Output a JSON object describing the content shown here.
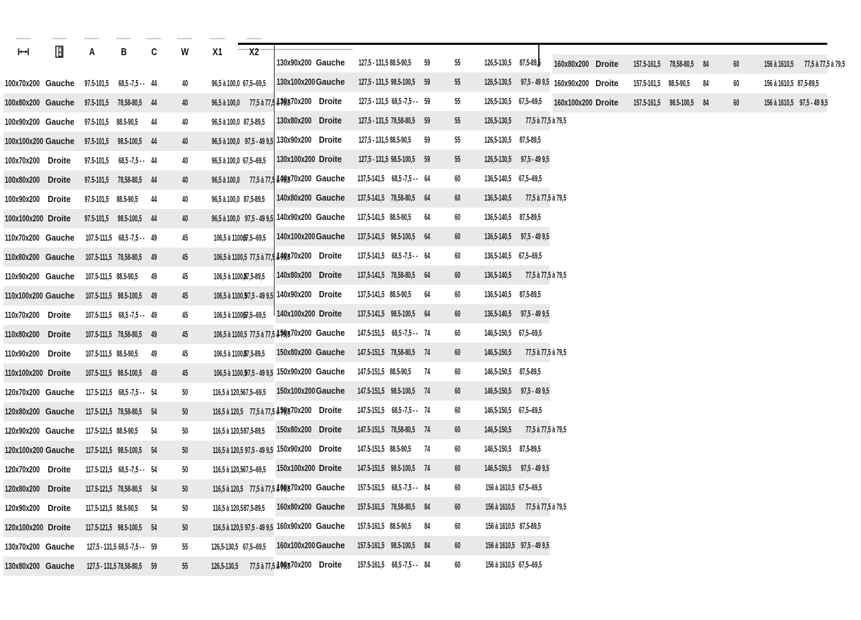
{
  "header": {
    "icon_columns": [
      "width-dimension-icon",
      "door-icon"
    ],
    "columns": [
      "A",
      "B",
      "C",
      "W",
      "X1",
      "X2"
    ]
  },
  "colors": {
    "stripe": "#e9e9e9",
    "text": "#161616",
    "rule": "#000000"
  },
  "table": {
    "field_order": [
      "size",
      "side",
      "a",
      "b",
      "c",
      "w",
      "x1",
      "x2"
    ],
    "blocks": [
      {
        "name": "left",
        "stripe_offset": 0,
        "rows": [
          [
            "100x70x200",
            "Gauche",
            "97.5-101,5",
            "68,5 -7,5 - -",
            "44",
            "40",
            "96,5 à 100,0",
            "67,5--69,5"
          ],
          [
            "100x80x200",
            "Gauche",
            "97.5-101,5",
            "78,58-80,5",
            "44",
            "40",
            "96,5 à 100,0",
            "77,5 à 77,5 à 79,5"
          ],
          [
            "100x90x200",
            "Gauche",
            "97.5-101,5",
            "88.5-90,5",
            "44",
            "40",
            "96,5 à 100,0",
            "87,5-89,5"
          ],
          [
            "100x100x200",
            "Gauche",
            "97.5-101,5",
            "98.5-100,5",
            "44",
            "40",
            "96,5 à 100,0",
            "97,5 - 49 9,5"
          ],
          [
            "100x70x200",
            "Droite",
            "97.5-101,5",
            "68,5 -7,5 - -",
            "44",
            "40",
            "96,5 à 100,0",
            "67,5--69,5"
          ],
          [
            "100x80x200",
            "Droite",
            "97.5-101,5",
            "78,58-80,5",
            "44",
            "40",
            "96,5 à 100,0",
            "77,5 à 77,5 à 79,5"
          ],
          [
            "100x90x200",
            "Droite",
            "97.5-101,5",
            "88.5-90,5",
            "44",
            "40",
            "96,5 à 100,0",
            "87,5-89,5"
          ],
          [
            "100x100x200",
            "Droite",
            "97.5-101,5",
            "98.5-100,5",
            "44",
            "40",
            "96,5 à 100,0",
            "97,5 - 49 9,5"
          ],
          [
            "110x70x200",
            "Gauche",
            "107.5-111,5",
            "68,5 -7,5 - -",
            "49",
            "45",
            "106,5 à 1100,5",
            "67,5--69,5"
          ],
          [
            "110x80x200",
            "Gauche",
            "107.5-111,5",
            "78,58-80,5",
            "49",
            "45",
            "106,5 à 1100,5",
            "77,5 à 77,5 à 79,5"
          ],
          [
            "110x90x200",
            "Gauche",
            "107.5-111,5",
            "88.5-90,5",
            "49",
            "45",
            "106,5 à 1100,5",
            "87,5-89,5"
          ],
          [
            "110x100x200",
            "Gauche",
            "107.5-111,5",
            "98.5-100,5",
            "49",
            "45",
            "106,5 à 1100,5",
            "97,5 - 49 9,5"
          ],
          [
            "110x70x200",
            "Droite",
            "107.5-111,5",
            "68,5 -7,5 - -",
            "49",
            "45",
            "106,5 à 1100,5",
            "67,5--69,5"
          ],
          [
            "110x80x200",
            "Droite",
            "107.5-111,5",
            "78,58-80,5",
            "49",
            "45",
            "106,5 à 1100,5",
            "77,5 à 77,5 à 79,5"
          ],
          [
            "110x90x200",
            "Droite",
            "107.5-111,5",
            "88.5-90,5",
            "49",
            "45",
            "106,5 à 1100,5",
            "87,5-89,5"
          ],
          [
            "110x100x200",
            "Droite",
            "107.5-111,5",
            "98.5-100,5",
            "49",
            "45",
            "106,5 à 1100,5",
            "97,5 - 49 9,5"
          ],
          [
            "120x70x200",
            "Gauche",
            "117.5-121,5",
            "68,5 -7,5 - -",
            "54",
            "50",
            "116,5 à 120,5",
            "67,5--69,5"
          ],
          [
            "120x80x200",
            "Gauche",
            "117.5-121,5",
            "78,58-80,5",
            "54",
            "50",
            "116,5 à 120,5",
            "77,5 à 77,5 à 79,5"
          ],
          [
            "120x90x200",
            "Gauche",
            "117.5-121,5",
            "88.5-90,5",
            "54",
            "50",
            "116,5 à 120,5",
            "87,5-89,5"
          ],
          [
            "120x100x200",
            "Gauche",
            "117.5-121,5",
            "98.5-100,5",
            "54",
            "50",
            "116,5 à 120,5",
            "97,5 - 49 9,5"
          ],
          [
            "120x70x200",
            "Droite",
            "117.5-121,5",
            "68,5 -7,5 - -",
            "54",
            "50",
            "116,5 à 120,5",
            "67,5--69,5"
          ],
          [
            "120x80x200",
            "Droite",
            "117.5-121,5",
            "78,58-80,5",
            "54",
            "50",
            "116,5 à 120,5",
            "77,5 à 77,5 à 79,5"
          ],
          [
            "120x90x200",
            "Droite",
            "117.5-121,5",
            "88.5-90,5",
            "54",
            "50",
            "116,5 à 120,5",
            "87,5-89,5"
          ],
          [
            "120x100x200",
            "Droite",
            "117.5-121,5",
            "98.5-100,5",
            "54",
            "50",
            "116,5 à 120,5",
            "97,5 - 49 9,5"
          ],
          [
            "130x70x200",
            "Gauche",
            "127,5 - 131,5",
            "68,5 -7,5 - -",
            "59",
            "55",
            "126,5-130,5",
            "67,5--69,5"
          ],
          [
            "130x80x200",
            "Gauche",
            "127,5 - 131,5",
            "78,58-80,5",
            "59",
            "55",
            "126,5-130,5",
            "77,5 à 77,5 à 79,5"
          ]
        ]
      },
      {
        "name": "middle",
        "stripe_offset": 0,
        "rows": [
          [
            "130x90x200",
            "Gauche",
            "127,5 - 131,5",
            "88.5-90,5",
            "59",
            "55",
            "126,5-130,5",
            "87,5-89,5"
          ],
          [
            "130x100x200",
            "Gauche",
            "127,5 - 131,5",
            "98.5-100,5",
            "59",
            "55",
            "126,5-130,5",
            "97,5 - 49 9,5"
          ],
          [
            "130x70x200",
            "Droite",
            "127,5 - 131,5",
            "68,5 -7,5 - -",
            "59",
            "55",
            "126,5-130,5",
            "67,5--69,5"
          ],
          [
            "130x80x200",
            "Droite",
            "127,5 - 131,5",
            "78,58-80,5",
            "59",
            "55",
            "126,5-130,5",
            "77,5 à 77,5 à 79,5"
          ],
          [
            "130x90x200",
            "Droite",
            "127,5 - 131,5",
            "88.5-90,5",
            "59",
            "55",
            "126,5-130,5",
            "87,5-89,5"
          ],
          [
            "130x100x200",
            "Droite",
            "127,5 - 131,5",
            "98.5-100,5",
            "59",
            "55",
            "126,5-130,5",
            "97,5 - 49 9,5"
          ],
          [
            "140x70x200",
            "Gauche",
            "137,5-141,5",
            "68,5 -7,5 - -",
            "64",
            "60",
            "136,5-140,5",
            "67,5--69,5"
          ],
          [
            "140x80x200",
            "Gauche",
            "137,5-141,5",
            "78,58-80,5",
            "64",
            "60",
            "136,5-140,5",
            "77,5 à 77,5 à 79,5"
          ],
          [
            "140x90x200",
            "Gauche",
            "137,5-141,5",
            "88.5-90,5",
            "64",
            "60",
            "136,5-140,5",
            "87,5-89,5"
          ],
          [
            "140x100x200",
            "Gauche",
            "137,5-141,5",
            "98.5-100,5",
            "64",
            "60",
            "136,5-140,5",
            "97,5 - 49 9,5"
          ],
          [
            "140x70x200",
            "Droite",
            "137,5-141,5",
            "68,5 -7,5 - -",
            "64",
            "60",
            "136,5-140,5",
            "67,5--69,5"
          ],
          [
            "140x80x200",
            "Droite",
            "137,5-141,5",
            "78,58-80,5",
            "64",
            "60",
            "136,5-140,5",
            "77,5 à 77,5 à 79,5"
          ],
          [
            "140x90x200",
            "Droite",
            "137,5-141,5",
            "88.5-90,5",
            "64",
            "60",
            "136,5-140,5",
            "87,5-89,5"
          ],
          [
            "140x100x200",
            "Droite",
            "137,5-141,5",
            "98.5-100,5",
            "64",
            "60",
            "136,5-140,5",
            "97,5 - 49 9,5"
          ],
          [
            "150x70x200",
            "Gauche",
            "147.5-151,5",
            "68,5 -7,5 - -",
            "74",
            "60",
            "146,5-150,5",
            "67,5--69,5"
          ],
          [
            "150x80x200",
            "Gauche",
            "147.5-151,5",
            "78,58-80,5",
            "74",
            "60",
            "146,5-150,5",
            "77,5 à 77,5 à 79,5"
          ],
          [
            "150x90x200",
            "Gauche",
            "147.5-151,5",
            "88.5-90,5",
            "74",
            "60",
            "146,5-150,5",
            "87,5-89,5"
          ],
          [
            "150x100x200",
            "Gauche",
            "147.5-151,5",
            "98.5-100,5",
            "74",
            "60",
            "146,5-150,5",
            "97,5 - 49 9,5"
          ],
          [
            "150x70x200",
            "Droite",
            "147.5-151,5",
            "68,5 -7,5 - -",
            "74",
            "60",
            "146,5-150,5",
            "67,5--69,5"
          ],
          [
            "150x80x200",
            "Droite",
            "147.5-151,5",
            "78,58-80,5",
            "74",
            "60",
            "146,5-150,5",
            "77,5 à 77,5 à 79,5"
          ],
          [
            "150x90x200",
            "Droite",
            "147.5-151,5",
            "88.5-90,5",
            "74",
            "60",
            "146,5-150,5",
            "87,5-89,5"
          ],
          [
            "150x100x200",
            "Droite",
            "147.5-151,5",
            "98.5-100,5",
            "74",
            "60",
            "146,5-150,5",
            "97,5 - 49 9,5"
          ],
          [
            "160x70x200",
            "Gauche",
            "157.5-161,5",
            "68,5 -7,5 - -",
            "84",
            "60",
            "156 à 1610,5",
            "67,5--69,5"
          ],
          [
            "160x80x200",
            "Gauche",
            "157.5-161,5",
            "78,58-80,5",
            "84",
            "60",
            "156 à 1610,5",
            "77,5 à 77,5 à 79,5"
          ],
          [
            "160x90x200",
            "Gauche",
            "157.5-161,5",
            "88.5-90,5",
            "84",
            "60",
            "156 à 1610,5",
            "87,5-89,5"
          ],
          [
            "160x100x200",
            "Gauche",
            "157.5-161,5",
            "98.5-100,5",
            "84",
            "60",
            "156 à 1610,5",
            "97,5 - 49 9,5"
          ],
          [
            "160x70x200",
            "Droite",
            "157.5-161,5",
            "68,5 -7,5 - -",
            "84",
            "60",
            "156 à 1610,5",
            "67,5--69,5"
          ]
        ]
      },
      {
        "name": "right",
        "stripe_offset": 1,
        "rows": [
          [
            "160x80x200",
            "Droite",
            "157.5-161,5",
            "78,58-80,5",
            "84",
            "60",
            "156 à 1610,5",
            "77,5 à 77,5 à 79,5"
          ],
          [
            "160x90x200",
            "Droite",
            "157.5-161,5",
            "88.5-90,5",
            "84",
            "60",
            "156 à 1610,5",
            "87,5-89,5"
          ],
          [
            "160x100x200",
            "Droite",
            "157.5-161,5",
            "98.5-100,5",
            "84",
            "60",
            "156 à 1610,5",
            "97,5 - 49 9,5"
          ]
        ]
      }
    ]
  }
}
